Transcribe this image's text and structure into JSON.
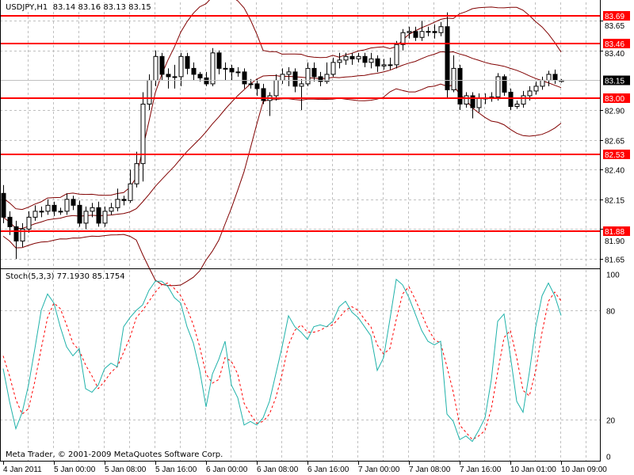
{
  "header": {
    "symbol": "USDJPY,H1",
    "open": "83.14",
    "high": "83.16",
    "low": "83.13",
    "close": "83.15"
  },
  "stoch_header": {
    "label": "Stoch(5,3,3)",
    "main": "77.1930",
    "signal": "85.1754"
  },
  "copyright": "Meta Trader, © 2001-2009 MetaQuotes Software Corp.",
  "colors": {
    "background": "#ffffff",
    "levels": "#ff0000",
    "bands": "#800000",
    "stoch_main": "#20b2aa",
    "stoch_signal": "#ff0000",
    "grid": "#c0c0c0"
  },
  "chart_data": [
    {
      "type": "candlestick",
      "title": "USDJPY,H1",
      "ylim": [
        81.6,
        83.75
      ],
      "grid": true,
      "price_ticks": [
        "83.65",
        "83.40",
        "82.90",
        "82.65",
        "82.40",
        "82.15",
        "81.90",
        "81.65"
      ],
      "x_labels": [
        "4 Jan 2011",
        "5 Jan 00:00",
        "5 Jan 08:00",
        "5 Jan 16:00",
        "6 Jan 00:00",
        "6 Jan 08:00",
        "6 Jan 16:00",
        "7 Jan 00:00",
        "7 Jan 08:00",
        "7 Jan 16:00",
        "10 Jan 01:00",
        "10 Jan 09:00"
      ],
      "levels": [
        "83.69",
        "83.46",
        "83.00",
        "82.53",
        "81.88"
      ],
      "current_price": "83.15",
      "bands": {
        "name": "",
        "period": 20,
        "deviation": 2
      },
      "open": [
        82.2,
        82.0,
        81.92,
        81.8,
        81.9,
        82.0,
        82.05,
        82.05,
        82.1,
        82.05,
        82.05,
        82.15,
        82.1,
        81.95,
        82.05,
        82.08,
        81.95,
        82.05,
        82.08,
        82.15,
        82.14,
        82.28,
        82.45,
        82.95,
        83.15,
        83.35,
        83.2,
        83.18,
        83.18,
        83.35,
        83.25,
        83.2,
        83.17,
        83.12,
        83.38,
        83.25,
        83.25,
        83.22,
        83.22,
        83.12,
        83.12,
        83.08,
        82.98,
        83.02,
        83.15,
        83.2,
        83.22,
        83.1,
        83.12,
        83.25,
        83.18,
        83.14,
        83.2,
        83.3,
        83.32,
        83.35,
        83.33,
        83.35,
        83.3,
        83.33,
        83.27,
        83.28,
        83.28,
        83.45,
        83.55,
        83.56,
        83.51,
        83.56,
        83.56,
        83.55,
        83.6,
        83.07,
        83.25,
        82.95,
        83.02,
        82.92,
        83.0,
        83.0,
        83.01,
        83.18,
        83.05,
        82.93,
        82.95,
        83.02,
        83.06,
        83.1,
        83.15,
        83.2,
        83.14
      ],
      "high": [
        82.27,
        82.05,
        81.97,
        81.95,
        82.05,
        82.1,
        82.09,
        82.15,
        82.13,
        82.08,
        82.2,
        82.18,
        82.14,
        82.09,
        82.12,
        82.13,
        82.09,
        82.12,
        82.24,
        82.18,
        82.4,
        82.55,
        83.05,
        83.2,
        83.4,
        83.38,
        83.25,
        83.28,
        83.38,
        83.38,
        83.3,
        83.22,
        83.22,
        83.42,
        83.4,
        83.3,
        83.28,
        83.26,
        83.25,
        83.16,
        83.16,
        83.12,
        83.05,
        83.2,
        83.25,
        83.26,
        83.25,
        83.16,
        83.3,
        83.3,
        83.22,
        83.3,
        83.34,
        83.38,
        83.38,
        83.38,
        83.38,
        83.38,
        83.38,
        83.36,
        83.33,
        83.34,
        83.48,
        83.58,
        83.6,
        83.6,
        83.65,
        83.6,
        83.62,
        83.64,
        83.72,
        83.36,
        83.28,
        83.05,
        83.05,
        83.04,
        83.04,
        83.05,
        83.21,
        83.2,
        83.08,
        82.98,
        83.06,
        83.1,
        83.14,
        83.18,
        83.23,
        83.24,
        83.16
      ],
      "low": [
        81.95,
        81.85,
        81.65,
        81.75,
        81.87,
        81.97,
        82.0,
        82.02,
        82.01,
        82.02,
        82.02,
        82.06,
        81.92,
        81.9,
        82.0,
        81.92,
        81.92,
        82.02,
        82.05,
        82.1,
        82.12,
        82.25,
        82.3,
        82.9,
        83.1,
        83.15,
        83.08,
        83.08,
        83.1,
        83.2,
        83.15,
        83.14,
        83.1,
        83.1,
        83.2,
        83.15,
        83.15,
        83.18,
        83.08,
        83.08,
        83.02,
        82.95,
        82.85,
        82.98,
        83.12,
        83.1,
        83.05,
        82.9,
        83.1,
        83.14,
        83.1,
        83.12,
        83.18,
        83.25,
        83.28,
        83.28,
        83.3,
        83.26,
        83.25,
        83.22,
        83.24,
        83.24,
        83.25,
        83.4,
        83.5,
        83.48,
        83.48,
        83.52,
        83.5,
        83.52,
        83.0,
        83.05,
        82.9,
        82.92,
        82.83,
        82.88,
        82.95,
        82.97,
        82.98,
        83.02,
        82.9,
        82.91,
        82.92,
        82.98,
        83.03,
        83.07,
        83.1,
        83.12,
        83.13
      ],
      "close": [
        82.0,
        81.92,
        81.8,
        81.9,
        82.0,
        82.05,
        82.05,
        82.1,
        82.05,
        82.05,
        82.15,
        82.1,
        81.95,
        82.05,
        82.08,
        81.95,
        82.05,
        82.08,
        82.15,
        82.14,
        82.28,
        82.45,
        82.95,
        83.15,
        83.35,
        83.2,
        83.18,
        83.18,
        83.35,
        83.25,
        83.2,
        83.17,
        83.12,
        83.38,
        83.25,
        83.25,
        83.22,
        83.22,
        83.12,
        83.12,
        83.08,
        82.98,
        83.02,
        83.15,
        83.2,
        83.22,
        83.1,
        83.12,
        83.25,
        83.18,
        83.14,
        83.2,
        83.3,
        83.32,
        83.35,
        83.33,
        83.35,
        83.3,
        83.33,
        83.27,
        83.28,
        83.28,
        83.45,
        83.55,
        83.56,
        83.51,
        83.56,
        83.56,
        83.55,
        83.6,
        83.07,
        83.25,
        82.95,
        83.02,
        82.92,
        83.0,
        83.0,
        83.01,
        83.18,
        83.05,
        82.93,
        82.95,
        83.02,
        83.06,
        83.1,
        83.15,
        83.2,
        83.15,
        83.15
      ]
    },
    {
      "type": "line",
      "title": "Stoch(5,3,3)",
      "ylim": [
        0,
        100
      ],
      "y_ticks": [
        "100",
        "80",
        "20",
        "0"
      ],
      "grid": true,
      "series": [
        {
          "name": "main",
          "values": [
            48,
            30,
            15,
            24,
            39,
            59,
            80,
            89,
            84,
            71,
            60,
            55,
            59,
            37,
            35,
            39,
            48,
            51,
            49,
            71,
            76,
            80,
            83,
            91,
            96,
            96,
            93,
            87,
            84,
            71,
            62,
            47,
            27,
            45,
            53,
            63,
            39,
            32,
            17,
            19,
            17,
            21,
            30,
            45,
            60,
            77,
            71,
            68,
            64,
            71,
            72,
            71,
            74,
            82,
            85,
            79,
            76,
            71,
            66,
            47,
            54,
            75,
            97,
            94,
            87,
            78,
            69,
            63,
            61,
            63,
            23,
            19,
            9,
            11,
            8,
            14,
            21,
            42,
            74,
            78,
            55,
            30,
            24,
            46,
            71,
            88,
            95,
            88,
            77.19
          ]
        },
        {
          "name": "signal",
          "values": [
            55,
            44,
            31,
            23,
            26,
            41,
            59,
            76,
            84,
            81,
            72,
            62,
            58,
            50,
            44,
            37,
            41,
            46,
            49,
            57,
            65,
            76,
            80,
            85,
            90,
            94,
            95,
            92,
            88,
            81,
            72,
            60,
            45,
            40,
            42,
            54,
            52,
            45,
            29,
            23,
            18,
            19,
            23,
            32,
            45,
            61,
            69,
            72,
            68,
            68,
            69,
            71,
            72,
            76,
            80,
            82,
            80,
            75,
            71,
            61,
            56,
            59,
            75,
            89,
            93,
            86,
            78,
            70,
            64,
            62,
            49,
            35,
            17,
            13,
            9,
            11,
            14,
            26,
            46,
            65,
            69,
            54,
            36,
            33,
            47,
            68,
            85,
            90,
            85.18
          ]
        }
      ]
    }
  ]
}
